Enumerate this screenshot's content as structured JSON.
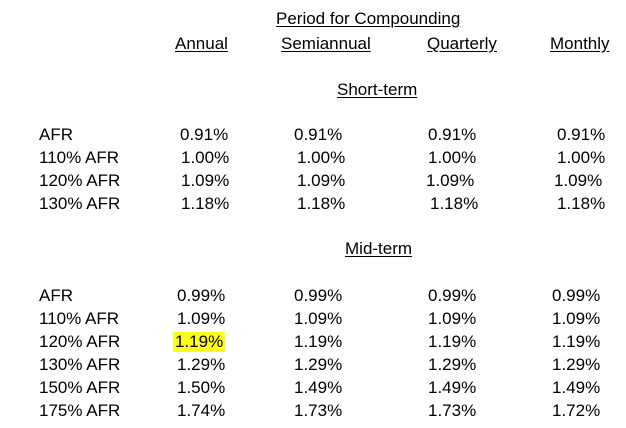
{
  "header": {
    "title": "Period for Compounding",
    "columns": [
      "Annual",
      "Semiannual",
      "Quarterly",
      "Monthly"
    ]
  },
  "sections": [
    {
      "title": "Short-term",
      "rows": [
        {
          "label": "AFR",
          "values": [
            "0.91%",
            "0.91%",
            "0.91%",
            "0.91%"
          ]
        },
        {
          "label": "110% AFR",
          "values": [
            "1.00%",
            "1.00%",
            "1.00%",
            "1.00%"
          ]
        },
        {
          "label": "120% AFR",
          "values": [
            "1.09%",
            "1.09%",
            "1.09%",
            "1.09%"
          ]
        },
        {
          "label": "130% AFR",
          "values": [
            "1.18%",
            "1.18%",
            "1.18%",
            "1.18%"
          ]
        }
      ]
    },
    {
      "title": "Mid-term",
      "rows": [
        {
          "label": "AFR",
          "values": [
            "0.99%",
            "0.99%",
            "0.99%",
            "0.99%"
          ]
        },
        {
          "label": "110% AFR",
          "values": [
            "1.09%",
            "1.09%",
            "1.09%",
            "1.09%"
          ]
        },
        {
          "label": "120% AFR",
          "values": [
            "1.19%",
            "1.19%",
            "1.19%",
            "1.19%"
          ]
        },
        {
          "label": "130% AFR",
          "values": [
            "1.29%",
            "1.29%",
            "1.29%",
            "1.29%"
          ]
        },
        {
          "label": "150% AFR",
          "values": [
            "1.50%",
            "1.49%",
            "1.49%",
            "1.49%"
          ]
        },
        {
          "label": "175% AFR",
          "values": [
            "1.74%",
            "1.73%",
            "1.73%",
            "1.72%"
          ]
        }
      ]
    }
  ],
  "highlight_color": "#ffff1a"
}
